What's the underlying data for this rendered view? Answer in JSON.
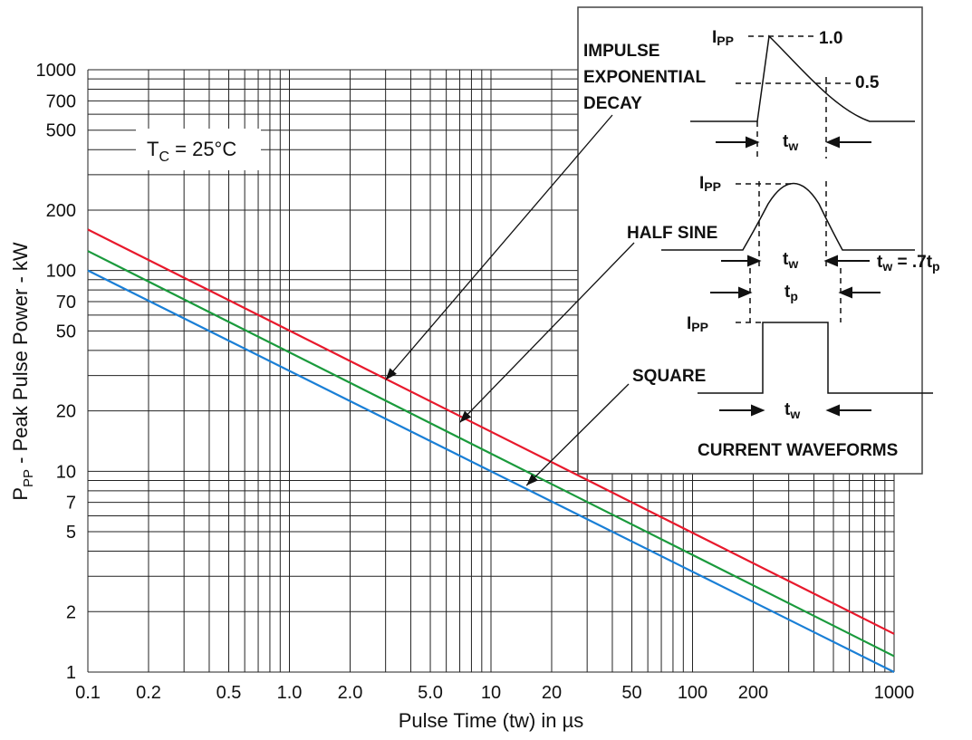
{
  "chart_data": {
    "type": "line",
    "xlabel": "Pulse Time (tw) in µs",
    "ylabel_main": "P",
    "ylabel_sub": "PP",
    "ylabel_rest": " - Peak Pulse Power - kW",
    "x_scale": "log",
    "y_scale": "log",
    "xlim": [
      0.1,
      1000
    ],
    "ylim": [
      1,
      1000
    ],
    "grid": true,
    "x_ticks": [
      {
        "value": 0.1,
        "label": "0.1"
      },
      {
        "value": 0.2,
        "label": "0.2"
      },
      {
        "value": 0.5,
        "label": "0.5"
      },
      {
        "value": 1,
        "label": "1.0"
      },
      {
        "value": 2,
        "label": "2.0"
      },
      {
        "value": 5,
        "label": "5.0"
      },
      {
        "value": 10,
        "label": "10"
      },
      {
        "value": 20,
        "label": "20"
      },
      {
        "value": 50,
        "label": "50"
      },
      {
        "value": 100,
        "label": "100"
      },
      {
        "value": 200,
        "label": "200"
      },
      {
        "value": 1000,
        "label": "1000"
      }
    ],
    "y_ticks": [
      {
        "value": 1,
        "label": "1"
      },
      {
        "value": 2,
        "label": "2"
      },
      {
        "value": 5,
        "label": "5"
      },
      {
        "value": 7,
        "label": "7"
      },
      {
        "value": 10,
        "label": "10"
      },
      {
        "value": 20,
        "label": "20"
      },
      {
        "value": 50,
        "label": "50"
      },
      {
        "value": 70,
        "label": "70"
      },
      {
        "value": 100,
        "label": "100"
      },
      {
        "value": 200,
        "label": "200"
      },
      {
        "value": 500,
        "label": "500"
      },
      {
        "value": 700,
        "label": "700"
      },
      {
        "value": 1000,
        "label": "1000"
      }
    ],
    "series": [
      {
        "color": "#e8192c",
        "x": [
          0.1,
          1000
        ],
        "y": [
          160,
          1.55
        ]
      },
      {
        "color": "#1a9a3c",
        "x": [
          0.1,
          1000
        ],
        "y": [
          125,
          1.2
        ]
      },
      {
        "color": "#1a7fd6",
        "x": [
          0.1,
          1000
        ],
        "y": [
          100,
          1.0
        ]
      }
    ],
    "condition": {
      "main": "T",
      "sub": "C",
      "rest": " = 25°C"
    },
    "annotations": [
      {
        "lines": [
          "IMPULSE",
          "EXPONENTIAL",
          "DECAY"
        ],
        "points_to": {
          "x": 3,
          "y": 28.5
        }
      },
      {
        "lines": [
          "HALF SINE"
        ],
        "points_to": {
          "x": 7,
          "y": 17.5
        }
      },
      {
        "lines": [
          "SQUARE"
        ],
        "points_to": {
          "x": 15,
          "y": 8.5
        }
      }
    ],
    "inset": {
      "title": "CURRENT WAVEFORMS",
      "ipp_main": "I",
      "ipp_sub": "PP",
      "level_full": "1.0",
      "level_half": "0.5",
      "tw_main": "t",
      "tw_sub": "w",
      "tp_main": "t",
      "tp_sub": "p",
      "relation_main": "t",
      "relation_sub1": "w",
      "relation_mid": " = .7t",
      "relation_sub2": "p"
    }
  }
}
